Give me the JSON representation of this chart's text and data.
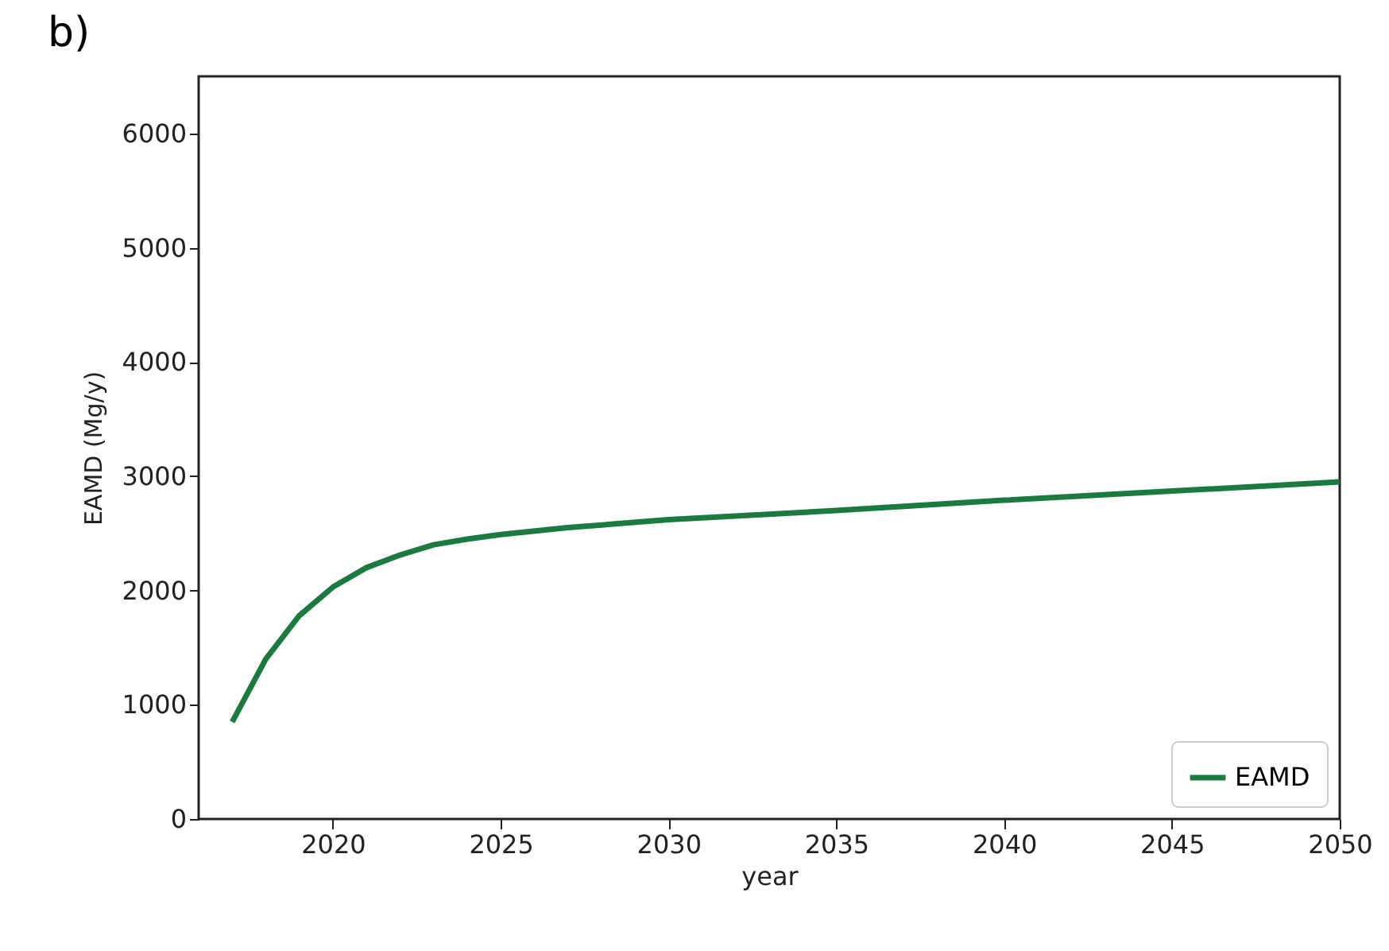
{
  "chart_data": {
    "type": "line",
    "title": "b)",
    "xlabel": "year",
    "ylabel": "EAMD (Mg/y)",
    "x": [
      2017,
      2018,
      2019,
      2020,
      2021,
      2022,
      2023,
      2024,
      2025,
      2027,
      2030,
      2035,
      2040,
      2045,
      2050
    ],
    "series": [
      {
        "name": "EAMD",
        "color": "#1a7a40",
        "values": [
          850,
          1400,
          1780,
          2030,
          2200,
          2310,
          2400,
          2450,
          2490,
          2550,
          2620,
          2700,
          2790,
          2870,
          2950
        ]
      }
    ],
    "xlim": [
      2016,
      2050
    ],
    "xticks": [
      2020,
      2025,
      2030,
      2035,
      2040,
      2045,
      2050
    ],
    "ylim": [
      0,
      6500
    ],
    "yticks": [
      0,
      1000,
      2000,
      3000,
      4000,
      5000,
      6000
    ],
    "grid": false,
    "legend": "bottom right",
    "marker": "none",
    "line_style": "solid"
  }
}
